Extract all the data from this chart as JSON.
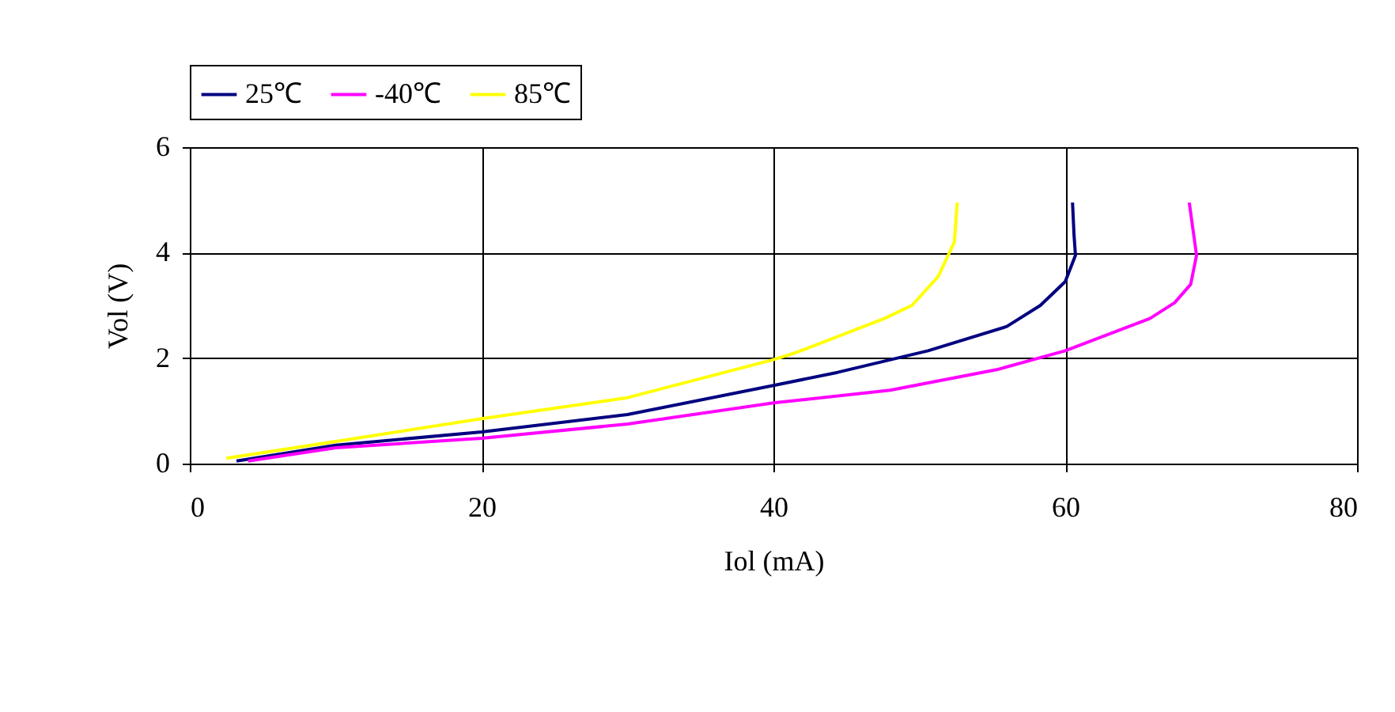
{
  "chart_data": {
    "type": "line",
    "xlabel": "Iol (mA)",
    "ylabel": "Vol (V)",
    "xlim": [
      0,
      80
    ],
    "xticks": [
      0,
      20,
      40,
      60,
      80
    ],
    "ylim": [
      0,
      6
    ],
    "yticks": [
      0,
      2,
      4,
      6
    ],
    "grid": true,
    "legend": "top",
    "marker": "none",
    "line_style": "solid",
    "series": [
      {
        "name": "25℃",
        "color": "#000080",
        "x": [
          3.2,
          10,
          20,
          30,
          40,
          44.4,
          50.6,
          56,
          58.3,
          60,
          60.7,
          60.6,
          60.5
        ],
        "values": [
          0.05,
          0.35,
          0.6,
          0.93,
          1.48,
          1.73,
          2.14,
          2.6,
          3.0,
          3.45,
          3.95,
          4.35,
          4.95
        ]
      },
      {
        "name": "-40℃",
        "color": "#ff00ff",
        "x": [
          4,
          10,
          20,
          30,
          40,
          48,
          55.3,
          60,
          65.8,
          67.5,
          68.6,
          69,
          68.8,
          68.5
        ],
        "values": [
          0.05,
          0.3,
          0.48,
          0.75,
          1.15,
          1.39,
          1.78,
          2.14,
          2.75,
          3.05,
          3.4,
          3.95,
          4.35,
          4.95
        ]
      },
      {
        "name": "85℃",
        "color": "#ffff00",
        "x": [
          2.5,
          10,
          20,
          30,
          40,
          41.5,
          47.6,
          49.5,
          51.3,
          52.4,
          52.6
        ],
        "values": [
          0.1,
          0.42,
          0.85,
          1.25,
          1.97,
          2.1,
          2.75,
          3.0,
          3.55,
          4.2,
          4.95
        ]
      }
    ]
  }
}
